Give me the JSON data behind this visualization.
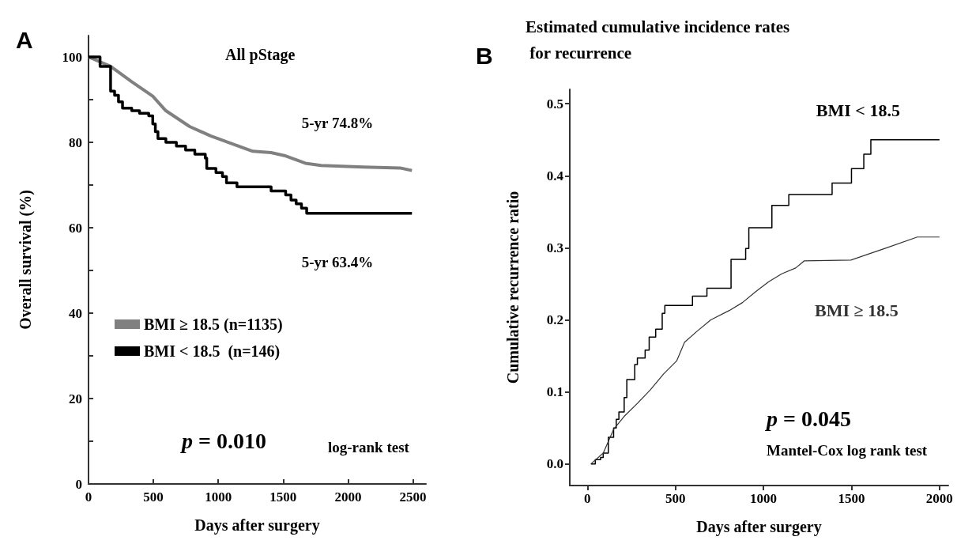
{
  "chart_data": [
    {
      "type": "step",
      "title": "All pStage",
      "xlabel": "Days after surgery",
      "ylabel": "Overall survival (%)",
      "xlim": [
        0,
        2600
      ],
      "xticks": [
        0,
        500,
        1000,
        1500,
        2000,
        2500
      ],
      "ylim": [
        0,
        105
      ],
      "yticks": [
        0,
        {
          "value": 10,
          "label": null
        },
        20,
        {
          "value": 30,
          "label": null
        },
        40,
        {
          "value": 50,
          "label": null
        },
        60,
        {
          "value": 70,
          "label": null
        },
        80,
        {
          "value": 90,
          "label": null
        },
        100
      ],
      "grid": false,
      "legend": "left",
      "series": [
        {
          "name": "BMI ≥ 18.5 (n=1135)",
          "type": "line",
          "color": "#808080",
          "x": [
            0,
            170,
            333,
            495,
            596,
            779,
            941,
            1103,
            1266,
            1407,
            1509,
            1671,
            1793,
            2117,
            2401,
            2492
          ],
          "values": [
            100,
            97.8,
            94.2,
            90.8,
            87.4,
            83.7,
            81.5,
            79.7,
            77.9,
            77.6,
            76.9,
            75.1,
            74.6,
            74.2,
            74.0,
            73.4
          ]
        },
        {
          "name": "BMI < 18.5  (n=146)",
          "color": "#000000",
          "x": [
            0,
            89,
            170,
            201,
            231,
            262,
            333,
            393,
            464,
            495,
            515,
            535,
            596,
            677,
            748,
            819,
            900,
            911,
            982,
            1032,
            1063,
            1144,
            1407,
            1519,
            1560,
            1600,
            1641,
            1681,
            2492
          ],
          "values": [
            100,
            97.8,
            92.0,
            91.0,
            89.5,
            88.0,
            87.4,
            86.8,
            86.2,
            84.3,
            82.5,
            80.9,
            80.0,
            79.1,
            78.2,
            77.2,
            76.3,
            73.9,
            72.9,
            72.0,
            70.5,
            69.6,
            68.6,
            67.7,
            66.5,
            65.6,
            64.6,
            63.4,
            63.4
          ]
        }
      ],
      "annotations": [
        "A",
        "p = 0.010",
        "log-rank test",
        {
          "text": "5-yr 74.8%",
          "x": 1825,
          "y": 74.8
        },
        {
          "text": "5-yr 63.4%",
          "x": 1825,
          "y": 63.4
        }
      ]
    },
    {
      "type": "step",
      "title": "Estimated cumulative incidence rates for recurrence",
      "xlabel": "Days after surgery",
      "ylabel": "Cumulative recurrence ratio",
      "xlim": [
        -100,
        2050
      ],
      "xticks": [
        0,
        500,
        1000,
        1500,
        2000
      ],
      "ylim": [
        -0.03,
        0.52
      ],
      "yticks": [
        {
          "value": 0,
          "label": "0.0"
        },
        0.1,
        0.2,
        0.3,
        0.4,
        0.5
      ],
      "grid": false,
      "legend": false,
      "series": [
        {
          "name": "BMI < 18.5",
          "color": "#000000",
          "x": [
            20,
            45,
            75,
            90,
            119,
            149,
            164,
            179,
            209,
            224,
            269,
            284,
            328,
            351,
            388,
            425,
            440,
            597,
            679,
            816,
            899,
            917,
            1048,
            1144,
            1390,
            1500,
            1570,
            1610,
            2000
          ],
          "values": [
            0,
            0.006,
            0.009,
            0.015,
            0.037,
            0.05,
            0.062,
            0.072,
            0.092,
            0.117,
            0.138,
            0.147,
            0.158,
            0.176,
            0.187,
            0.209,
            0.22,
            0.233,
            0.244,
            0.284,
            0.299,
            0.328,
            0.359,
            0.374,
            0.39,
            0.41,
            0.43,
            0.45,
            0.45
          ]
        },
        {
          "name": "BMI ≥ 18.5",
          "type": "line",
          "color": "#333333",
          "x": [
            20,
            90,
            149,
            209,
            284,
            358,
            433,
            507,
            552,
            627,
            701,
            806,
            881,
            955,
            1030,
            1104,
            1183,
            1232,
            1497,
            1700,
            1874,
            2000
          ],
          "values": [
            0,
            0.015,
            0.048,
            0.066,
            0.084,
            0.103,
            0.125,
            0.143,
            0.169,
            0.185,
            0.2,
            0.213,
            0.224,
            0.239,
            0.253,
            0.264,
            0.272,
            0.282,
            0.283,
            0.3,
            0.315,
            0.315
          ]
        }
      ],
      "annotations": [
        "B",
        "p = 0.045",
        "Mantel-Cox log rank test"
      ]
    }
  ]
}
